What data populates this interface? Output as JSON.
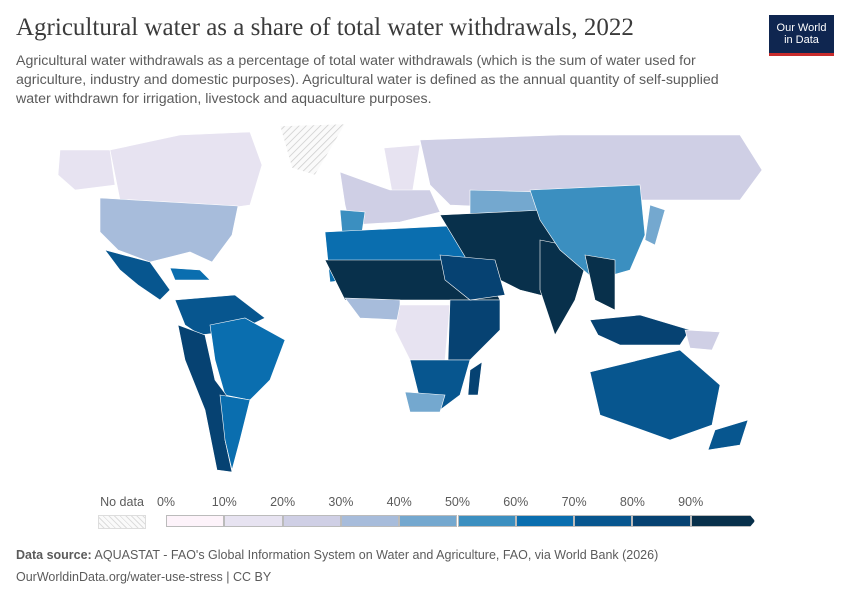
{
  "header": {
    "title": "Agricultural water as a share of total water withdrawals, 2022",
    "subtitle": "Agricultural water withdrawals as a percentage of total water withdrawals (which is the sum of water used for agriculture, industry and domestic purposes). Agricultural water is defined as the annual quantity of self-supplied water withdrawn for irrigation, livestock and aquaculture purposes.",
    "logo_line1": "Our World",
    "logo_line2": "in Data"
  },
  "legend": {
    "no_data_label": "No data",
    "ticks": [
      "0%",
      "10%",
      "20%",
      "30%",
      "40%",
      "50%",
      "60%",
      "70%",
      "80%",
      "90%"
    ],
    "colors": [
      "#fdf3fa",
      "#e7e3f1",
      "#cfcfe5",
      "#a7bcdb",
      "#74a8cf",
      "#3b8fc0",
      "#0a6eaf",
      "#07568f",
      "#064272",
      "#08304b"
    ],
    "no_data_color": "#e6e6e6"
  },
  "footer": {
    "source_label": "Data source:",
    "source": "AQUASTAT - FAO's Global Information System on Water and Agriculture, FAO, via World Bank (2026)",
    "url": "OurWorldinData.org/water-use-stress | CC BY"
  }
}
